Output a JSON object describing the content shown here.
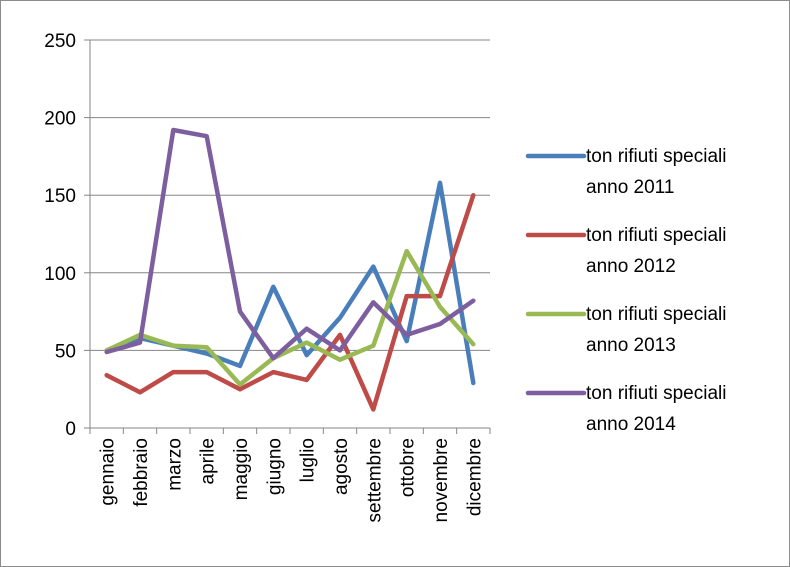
{
  "chart_data": {
    "type": "line",
    "title": "",
    "xlabel": "",
    "ylabel": "",
    "ylim": [
      0,
      250
    ],
    "yticks": [
      0,
      50,
      100,
      150,
      200,
      250
    ],
    "grid": "horizontal",
    "legend_position": "right",
    "categories": [
      "gennaio",
      "febbraio",
      "marzo",
      "aprile",
      "maggio",
      "giugno",
      "luglio",
      "agosto",
      "settembre",
      "ottobre",
      "novembre",
      "dicembre"
    ],
    "series": [
      {
        "name": "ton rifiuti speciali anno 2011",
        "color": "#4a7ebb",
        "values": [
          50,
          58,
          53,
          48,
          40,
          91,
          47,
          71,
          104,
          56,
          158,
          29
        ]
      },
      {
        "name": "ton rifiuti speciali anno 2012",
        "color": "#be4b48",
        "values": [
          34,
          23,
          36,
          36,
          25,
          36,
          31,
          60,
          12,
          85,
          85,
          150
        ]
      },
      {
        "name": "ton rifiuti speciali anno 2013",
        "color": "#98b954",
        "values": [
          50,
          60,
          53,
          52,
          28,
          45,
          55,
          44,
          53,
          114,
          78,
          54
        ]
      },
      {
        "name": "ton rifiuti speciali anno 2014",
        "color": "#7d5fa0",
        "values": [
          49,
          55,
          192,
          188,
          75,
          45,
          64,
          50,
          81,
          60,
          67,
          82
        ]
      }
    ]
  }
}
